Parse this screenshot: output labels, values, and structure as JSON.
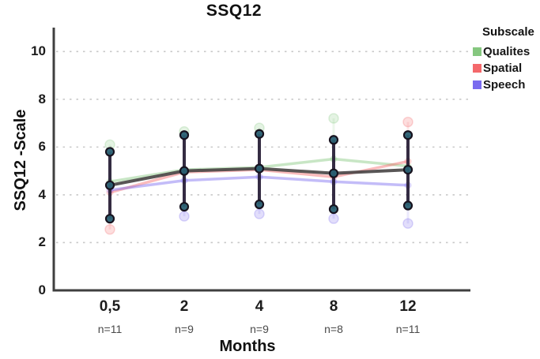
{
  "chart_data": {
    "type": "line",
    "title": "SSQ12",
    "xlabel": "Months",
    "ylabel": "SSQ12 -Scale",
    "ylim": [
      0,
      11
    ],
    "yticks": [
      0,
      2,
      4,
      6,
      8,
      10
    ],
    "grid": "horizontal-dashed",
    "categories": [
      "0,5",
      "2",
      "4",
      "8",
      "12"
    ],
    "n_labels": [
      "n=11",
      "n=9",
      "n=9",
      "n=8",
      "n=11"
    ],
    "legend": {
      "title": "Subscale",
      "position": "right"
    },
    "series": [
      {
        "name": "Qualites",
        "color": "#85c77f",
        "values": [
          4.55,
          5.05,
          5.15,
          5.5,
          5.2
        ]
      },
      {
        "name": "Spatial",
        "color": "#f4686b",
        "values": [
          4.1,
          4.95,
          5.05,
          4.75,
          5.4
        ]
      },
      {
        "name": "Speech",
        "color": "#7a6bef",
        "values": [
          4.2,
          4.6,
          4.75,
          4.55,
          4.4
        ]
      }
    ],
    "overall_series": {
      "name": "Overall mean",
      "color": "#474444",
      "values": [
        4.4,
        5.0,
        5.1,
        4.9,
        5.05
      ]
    },
    "error_bars": {
      "color": "#241a33",
      "marker_color": "#2a6073",
      "upper": [
        5.8,
        6.5,
        6.55,
        6.3,
        6.5
      ],
      "lower": [
        3.0,
        3.5,
        3.6,
        3.4,
        3.55
      ]
    },
    "faded_extremes": [
      {
        "x_index": 0,
        "series": "Qualites",
        "value": 6.1
      },
      {
        "x_index": 0,
        "series": "Spatial",
        "value": 2.55
      },
      {
        "x_index": 1,
        "series": "Qualites",
        "value": 6.65
      },
      {
        "x_index": 1,
        "series": "Speech",
        "value": 3.1
      },
      {
        "x_index": 2,
        "series": "Qualites",
        "value": 6.8
      },
      {
        "x_index": 2,
        "series": "Speech",
        "value": 3.2
      },
      {
        "x_index": 3,
        "series": "Qualites",
        "value": 7.2
      },
      {
        "x_index": 3,
        "series": "Speech",
        "value": 3.0
      },
      {
        "x_index": 4,
        "series": "Spatial",
        "value": 7.05
      },
      {
        "x_index": 4,
        "series": "Speech",
        "value": 2.8
      }
    ],
    "colors": {
      "axis": "#3f3f3f",
      "grid": "#c9c9c9",
      "background": "#ffffff"
    }
  }
}
